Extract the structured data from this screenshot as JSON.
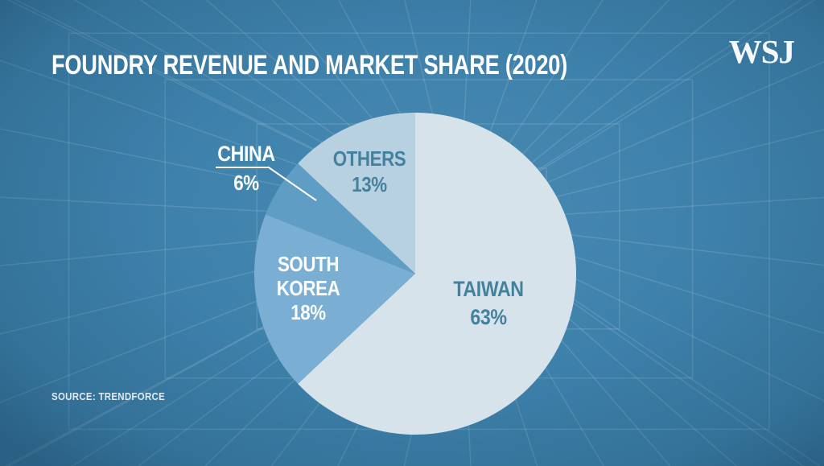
{
  "brand": {
    "logo_text": "WSJ"
  },
  "style": {
    "background": "#3e82ac",
    "grid_line": "rgba(255,255,255,0.13)",
    "title_color": "#fdfdfd",
    "blue_label_color": "#44819f",
    "white_label_color": "#fbfdfe",
    "leader_line_color": "#ffffff"
  },
  "chart_data": {
    "type": "pie",
    "title": "FOUNDRY REVENUE AND MARKET SHARE (2020)",
    "source": "SOURCE: TRENDFORCE",
    "direction": "clockwise",
    "start_angle_deg": 0,
    "legend_position": "labels-on-chart",
    "slices": [
      {
        "label": "TAIWAN",
        "value": 63,
        "display": "63%",
        "color": "#d6e3ea",
        "label_color": "#44819f"
      },
      {
        "label": "SOUTH KOREA",
        "value": 18,
        "display": "18%",
        "color": "#7aaed2",
        "label_color": "#fbfdfe"
      },
      {
        "label": "CHINA",
        "value": 6,
        "display": "6%",
        "color": "#5f9dc4",
        "label_color": "#fbfdfe"
      },
      {
        "label": "OTHERS",
        "value": 13,
        "display": "13%",
        "color": "#b8d1e0",
        "label_color": "#44819f"
      }
    ]
  }
}
